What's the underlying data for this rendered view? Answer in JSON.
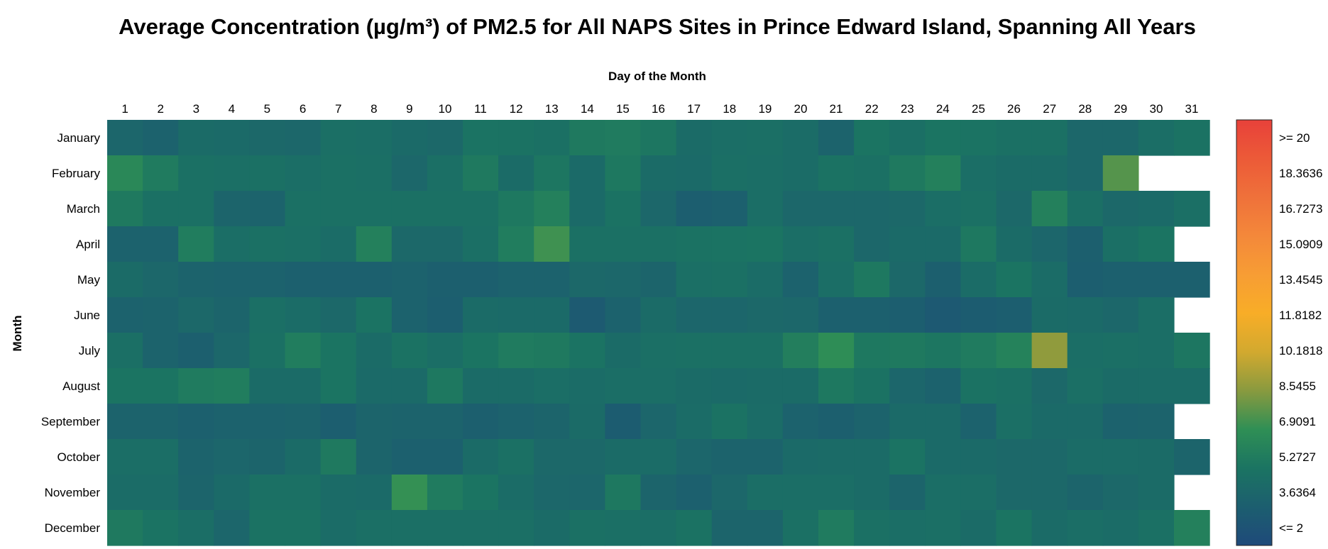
{
  "chart_data": {
    "type": "heatmap",
    "title": "Average Concentration (µg/m³) of PM2.5 for All NAPS Sites in Prince Edward Island, Spanning All Years",
    "xlabel": "Day of the Month",
    "ylabel": "Month",
    "x": [
      "1",
      "2",
      "3",
      "4",
      "5",
      "6",
      "7",
      "8",
      "9",
      "10",
      "11",
      "12",
      "13",
      "14",
      "15",
      "16",
      "17",
      "18",
      "19",
      "20",
      "21",
      "22",
      "23",
      "24",
      "25",
      "26",
      "27",
      "28",
      "29",
      "30",
      "31"
    ],
    "y": [
      "January",
      "February",
      "March",
      "April",
      "May",
      "June",
      "July",
      "August",
      "September",
      "October",
      "November",
      "December"
    ],
    "values": [
      [
        4.2,
        3.9,
        4.6,
        4.5,
        4.4,
        4.3,
        4.9,
        4.8,
        4.5,
        4.4,
        5.2,
        5.1,
        5.0,
        5.6,
        5.7,
        5.4,
        4.6,
        4.8,
        4.9,
        4.7,
        4.0,
        5.3,
        4.9,
        5.3,
        5.2,
        5.0,
        5.0,
        4.3,
        4.3,
        4.8,
        5.1
      ],
      [
        6.5,
        5.7,
        5.0,
        4.9,
        5.0,
        4.8,
        5.0,
        4.9,
        4.3,
        4.9,
        5.6,
        4.6,
        5.4,
        4.5,
        5.5,
        4.6,
        4.5,
        4.9,
        4.8,
        4.7,
        5.1,
        5.0,
        5.6,
        6.0,
        4.8,
        4.6,
        4.6,
        4.3,
        7.6,
        null,
        null
      ],
      [
        5.6,
        5.0,
        5.0,
        4.1,
        4.0,
        5.0,
        5.0,
        5.0,
        5.0,
        5.0,
        5.0,
        5.5,
        6.0,
        4.5,
        5.1,
        4.3,
        3.6,
        3.8,
        4.8,
        4.3,
        4.3,
        4.3,
        4.4,
        4.8,
        5.0,
        4.4,
        6.0,
        4.9,
        4.4,
        4.5,
        4.9
      ],
      [
        3.9,
        3.9,
        5.8,
        4.8,
        5.0,
        4.9,
        4.7,
        6.0,
        4.4,
        4.4,
        4.9,
        5.8,
        7.2,
        5.0,
        5.0,
        5.0,
        5.1,
        5.2,
        5.3,
        4.8,
        5.0,
        4.3,
        4.5,
        4.5,
        5.5,
        4.6,
        4.2,
        3.7,
        4.9,
        5.3,
        null
      ],
      [
        4.6,
        4.3,
        4.0,
        3.9,
        3.9,
        3.8,
        3.8,
        3.8,
        3.9,
        3.7,
        3.7,
        3.9,
        3.9,
        4.4,
        4.3,
        4.1,
        4.9,
        5.0,
        4.7,
        3.9,
        4.8,
        5.5,
        4.4,
        3.7,
        4.7,
        5.3,
        4.7,
        3.6,
        3.8,
        3.8,
        3.8
      ],
      [
        3.9,
        4.0,
        4.4,
        4.1,
        4.9,
        4.7,
        4.4,
        5.2,
        3.9,
        3.6,
        4.6,
        4.5,
        4.5,
        3.3,
        3.9,
        4.6,
        4.2,
        4.2,
        4.4,
        4.3,
        3.8,
        3.8,
        3.6,
        3.2,
        3.5,
        3.6,
        4.6,
        4.5,
        4.3,
        4.8,
        null
      ],
      [
        4.9,
        4.0,
        3.7,
        4.3,
        5.0,
        5.8,
        5.3,
        4.6,
        5.1,
        4.8,
        5.3,
        5.7,
        5.6,
        5.2,
        4.6,
        4.9,
        5.0,
        5.0,
        5.0,
        5.9,
        6.8,
        5.5,
        5.6,
        5.4,
        5.7,
        6.1,
        8.7,
        4.8,
        4.9,
        4.8,
        5.4
      ],
      [
        5.3,
        5.3,
        5.7,
        5.8,
        4.6,
        4.6,
        5.3,
        4.5,
        4.5,
        5.5,
        4.6,
        4.6,
        4.8,
        4.7,
        4.8,
        4.8,
        4.6,
        4.5,
        4.6,
        4.6,
        5.5,
        5.1,
        4.2,
        3.9,
        5.1,
        5.0,
        4.4,
        4.9,
        4.6,
        4.7,
        4.7
      ],
      [
        4.0,
        4.0,
        3.8,
        3.9,
        3.9,
        4.0,
        3.6,
        4.1,
        4.0,
        4.0,
        3.7,
        3.9,
        4.1,
        4.6,
        3.5,
        4.2,
        4.7,
        5.1,
        4.7,
        3.9,
        3.7,
        4.0,
        4.5,
        4.5,
        3.9,
        4.9,
        4.5,
        4.5,
        3.9,
        4.0,
        null
      ],
      [
        4.8,
        4.8,
        4.0,
        4.2,
        4.1,
        4.6,
        5.6,
        4.1,
        3.8,
        3.8,
        4.6,
        5.0,
        4.4,
        4.4,
        4.6,
        4.7,
        4.2,
        4.0,
        4.0,
        4.5,
        4.6,
        4.6,
        5.2,
        4.5,
        4.5,
        4.4,
        4.4,
        4.7,
        4.7,
        4.6,
        4.1
      ],
      [
        4.7,
        4.7,
        4.1,
        4.5,
        5.0,
        5.0,
        4.6,
        4.5,
        7.0,
        5.7,
        5.3,
        4.7,
        4.3,
        4.2,
        5.5,
        4.1,
        3.8,
        4.3,
        4.8,
        4.8,
        4.8,
        4.6,
        4.1,
        4.8,
        4.8,
        4.4,
        4.4,
        4.1,
        4.4,
        4.6,
        null
      ],
      [
        5.6,
        5.2,
        4.8,
        4.2,
        5.1,
        5.1,
        4.7,
        4.9,
        4.9,
        4.9,
        4.9,
        4.9,
        4.6,
        5.0,
        4.9,
        4.8,
        5.1,
        4.1,
        4.1,
        5.0,
        5.7,
        5.0,
        4.8,
        4.9,
        4.6,
        5.3,
        4.6,
        4.8,
        4.7,
        5.0,
        6.0
      ]
    ],
    "colorbar": {
      "labels": [
        ">= 20",
        "18.3636",
        "16.7273",
        "15.0909",
        "13.4545",
        "11.8182",
        "10.1818",
        "8.5455",
        "6.9091",
        "5.2727",
        "3.6364",
        "<= 2"
      ],
      "colors": [
        "#e8413a",
        "#ec5a38",
        "#ef713a",
        "#f4883a",
        "#f79d34",
        "#f8ad27",
        "#d2a92f",
        "#899a3f",
        "#2f8f55",
        "#1b7462",
        "#1c5e6f",
        "#1f4a7a"
      ],
      "min": 2,
      "max": 20
    },
    "grid": false,
    "legend_placement": "right"
  }
}
